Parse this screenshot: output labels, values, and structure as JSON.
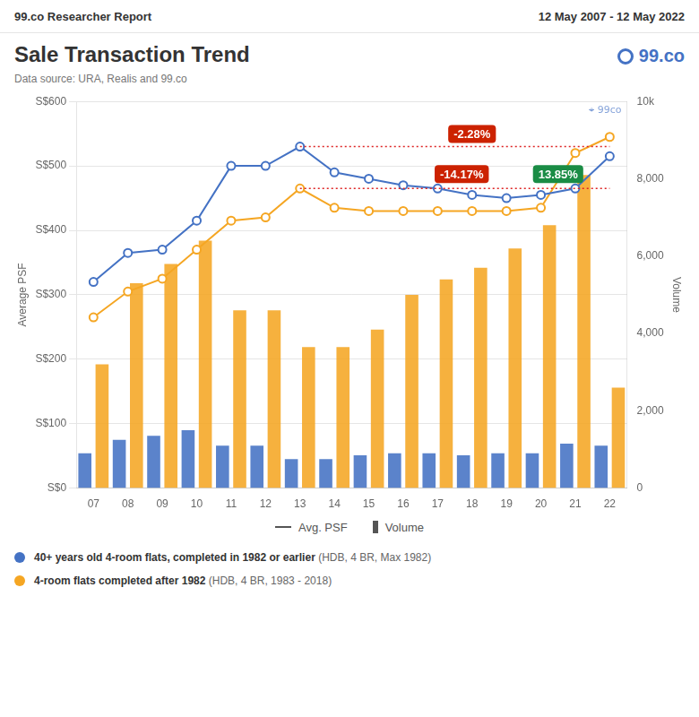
{
  "chart_data": {
    "type": "bar",
    "header_left": "99.co Researcher Report",
    "header_right": "12 May 2007 - 12 May 2022",
    "title": "Sale Transaction Trend",
    "subtitle": "Data source: URA, Realis and 99.co",
    "logo": "99.co",
    "watermark": "⌖ 99co",
    "y_label": "Average PSF",
    "y2_label": "Volume",
    "kind_labels": {
      "line": "Avg. PSF",
      "bar": "Volume"
    },
    "categories": [
      "07",
      "08",
      "09",
      "10",
      "11",
      "12",
      "13",
      "14",
      "15",
      "16",
      "17",
      "18",
      "19",
      "20",
      "21",
      "22"
    ],
    "series": [
      {
        "name": "40+ years old 4-room flats, completed in 1982 or earlier",
        "note": " (HDB, 4 BR, Max 1982)",
        "type": "line",
        "marker": "circle",
        "color": "#4472c4",
        "values": [
          320,
          365,
          370,
          415,
          500,
          500,
          530,
          490,
          480,
          470,
          465,
          455,
          450,
          455,
          465,
          515
        ]
      },
      {
        "name": "4-room flats completed after 1982",
        "note": " (HDB, 4 BR, 1983 - 2018)",
        "type": "line",
        "marker": "circle",
        "color": "#f5a623",
        "values": [
          265,
          305,
          325,
          370,
          415,
          420,
          465,
          435,
          430,
          430,
          430,
          430,
          430,
          435,
          520,
          545
        ]
      },
      {
        "name": "40+ years old 4-room flats, completed in 1982 or earlier",
        "note": " (HDB, 4 BR, Max 1982)",
        "type": "bar",
        "axis": "y2",
        "color": "#4472c4",
        "values": [
          900,
          1250,
          1350,
          1500,
          1100,
          1100,
          750,
          750,
          850,
          900,
          900,
          850,
          900,
          900,
          1150,
          1100
        ]
      },
      {
        "name": "4-room flats completed after 1982",
        "note": " (HDB, 4 BR, 1983 - 2018)",
        "type": "bar",
        "axis": "y2",
        "color": "#f5a623",
        "values": [
          3200,
          5300,
          5800,
          6400,
          4600,
          4600,
          3650,
          3650,
          4100,
          5000,
          5400,
          5700,
          6200,
          6800,
          8100,
          2600
        ]
      }
    ],
    "reference_lines": [
      {
        "from": "13",
        "to": "22",
        "value": 530,
        "color": "#dd2222",
        "line_style": "dotted"
      },
      {
        "from": "13",
        "to": "22",
        "value": 465,
        "color": "#dd2222",
        "line_style": "dotted"
      }
    ],
    "annotations": [
      {
        "text": "-2.28%",
        "color": "#cc2200"
      },
      {
        "text": "-14.17%",
        "color": "#cc2200"
      },
      {
        "text": "13.85%",
        "color": "#1a8c45"
      }
    ],
    "ylim": [
      0,
      600
    ],
    "yticks": [
      {
        "value": 0,
        "label": "S$0"
      },
      {
        "value": 100,
        "label": "S$100"
      },
      {
        "value": 200,
        "label": "S$200"
      },
      {
        "value": 300,
        "label": "S$300"
      },
      {
        "value": 400,
        "label": "S$400"
      },
      {
        "value": 500,
        "label": "S$500"
      },
      {
        "value": 600,
        "label": "S$600"
      }
    ],
    "y2lim": [
      0,
      10000
    ],
    "y2ticks": [
      0,
      {
        "value": 2000,
        "label": "2,000"
      },
      {
        "value": 4000,
        "label": "4,000"
      },
      {
        "value": 6000,
        "label": "6,000"
      },
      {
        "value": 8000,
        "label": "8,000"
      },
      {
        "value": 10000,
        "label": "10k"
      }
    ],
    "grid": true
  }
}
